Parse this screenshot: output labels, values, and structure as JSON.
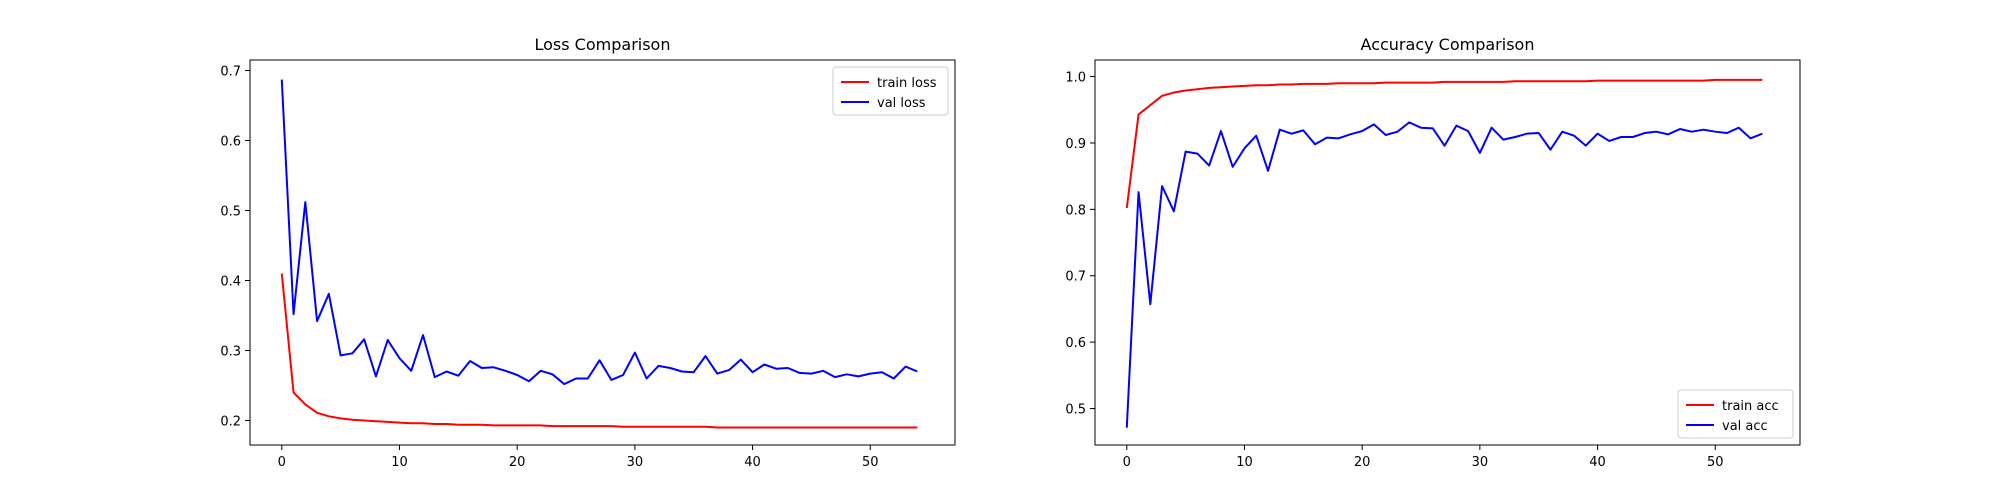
{
  "chart_data": [
    {
      "type": "line",
      "title": "Loss Comparison",
      "xlabel": "",
      "ylabel": "",
      "xlim": [
        -2.7,
        57.2
      ],
      "ylim": [
        0.165,
        0.715
      ],
      "x_ticks": [
        0,
        10,
        20,
        30,
        40,
        50
      ],
      "y_ticks": [
        0.2,
        0.3,
        0.4,
        0.5,
        0.6,
        0.7
      ],
      "y_tick_decimals": 1,
      "grid": false,
      "legend_position": "upper right",
      "x": [
        0,
        1,
        2,
        3,
        4,
        5,
        6,
        7,
        8,
        9,
        10,
        11,
        12,
        13,
        14,
        15,
        16,
        17,
        18,
        19,
        20,
        21,
        22,
        23,
        24,
        25,
        26,
        27,
        28,
        29,
        30,
        31,
        32,
        33,
        34,
        35,
        36,
        37,
        38,
        39,
        40,
        41,
        42,
        43,
        44,
        45,
        46,
        47,
        48,
        49,
        50,
        51,
        52,
        53,
        54
      ],
      "series": [
        {
          "name": "train loss",
          "color": "#ff0000",
          "values": [
            0.41,
            0.24,
            0.223,
            0.211,
            0.206,
            0.203,
            0.201,
            0.2,
            0.199,
            0.198,
            0.197,
            0.196,
            0.196,
            0.195,
            0.195,
            0.194,
            0.194,
            0.194,
            0.193,
            0.193,
            0.193,
            0.193,
            0.193,
            0.192,
            0.192,
            0.192,
            0.192,
            0.192,
            0.192,
            0.191,
            0.191,
            0.191,
            0.191,
            0.191,
            0.191,
            0.191,
            0.191,
            0.19,
            0.19,
            0.19,
            0.19,
            0.19,
            0.19,
            0.19,
            0.19,
            0.19,
            0.19,
            0.19,
            0.19,
            0.19,
            0.19,
            0.19,
            0.19,
            0.19,
            0.19
          ]
        },
        {
          "name": "val loss",
          "color": "#0000ff",
          "values": [
            0.687,
            0.352,
            0.512,
            0.342,
            0.381,
            0.293,
            0.296,
            0.316,
            0.263,
            0.315,
            0.289,
            0.271,
            0.322,
            0.262,
            0.27,
            0.264,
            0.285,
            0.275,
            0.276,
            0.271,
            0.265,
            0.256,
            0.271,
            0.266,
            0.252,
            0.26,
            0.26,
            0.286,
            0.258,
            0.265,
            0.297,
            0.26,
            0.278,
            0.275,
            0.27,
            0.269,
            0.292,
            0.267,
            0.272,
            0.287,
            0.269,
            0.28,
            0.274,
            0.275,
            0.268,
            0.267,
            0.271,
            0.262,
            0.266,
            0.263,
            0.267,
            0.269,
            0.26,
            0.277,
            0.27
          ]
        }
      ]
    },
    {
      "type": "line",
      "title": "Accuracy Comparison",
      "xlabel": "",
      "ylabel": "",
      "xlim": [
        -2.7,
        57.2
      ],
      "ylim": [
        0.445,
        1.025
      ],
      "x_ticks": [
        0,
        10,
        20,
        30,
        40,
        50
      ],
      "y_ticks": [
        0.5,
        0.6,
        0.7,
        0.8,
        0.9,
        1.0
      ],
      "y_tick_decimals": 1,
      "grid": false,
      "legend_position": "lower right",
      "x": [
        0,
        1,
        2,
        3,
        4,
        5,
        6,
        7,
        8,
        9,
        10,
        11,
        12,
        13,
        14,
        15,
        16,
        17,
        18,
        19,
        20,
        21,
        22,
        23,
        24,
        25,
        26,
        27,
        28,
        29,
        30,
        31,
        32,
        33,
        34,
        35,
        36,
        37,
        38,
        39,
        40,
        41,
        42,
        43,
        44,
        45,
        46,
        47,
        48,
        49,
        50,
        51,
        52,
        53,
        54
      ],
      "series": [
        {
          "name": "train acc",
          "color": "#ff0000",
          "values": [
            0.802,
            0.943,
            0.957,
            0.971,
            0.976,
            0.979,
            0.981,
            0.983,
            0.984,
            0.985,
            0.986,
            0.987,
            0.987,
            0.988,
            0.988,
            0.989,
            0.989,
            0.989,
            0.99,
            0.99,
            0.99,
            0.99,
            0.991,
            0.991,
            0.991,
            0.991,
            0.991,
            0.992,
            0.992,
            0.992,
            0.992,
            0.992,
            0.992,
            0.993,
            0.993,
            0.993,
            0.993,
            0.993,
            0.993,
            0.993,
            0.994,
            0.994,
            0.994,
            0.994,
            0.994,
            0.994,
            0.994,
            0.994,
            0.994,
            0.994,
            0.995,
            0.995,
            0.995,
            0.995,
            0.995
          ]
        },
        {
          "name": "val acc",
          "color": "#0000ff",
          "values": [
            0.471,
            0.826,
            0.657,
            0.835,
            0.797,
            0.887,
            0.884,
            0.866,
            0.918,
            0.864,
            0.892,
            0.911,
            0.858,
            0.92,
            0.914,
            0.919,
            0.898,
            0.908,
            0.907,
            0.913,
            0.918,
            0.928,
            0.912,
            0.917,
            0.931,
            0.923,
            0.922,
            0.896,
            0.926,
            0.918,
            0.885,
            0.923,
            0.905,
            0.909,
            0.914,
            0.915,
            0.89,
            0.917,
            0.911,
            0.896,
            0.914,
            0.903,
            0.909,
            0.909,
            0.915,
            0.917,
            0.913,
            0.921,
            0.917,
            0.92,
            0.917,
            0.915,
            0.923,
            0.907,
            0.914
          ]
        }
      ]
    }
  ]
}
